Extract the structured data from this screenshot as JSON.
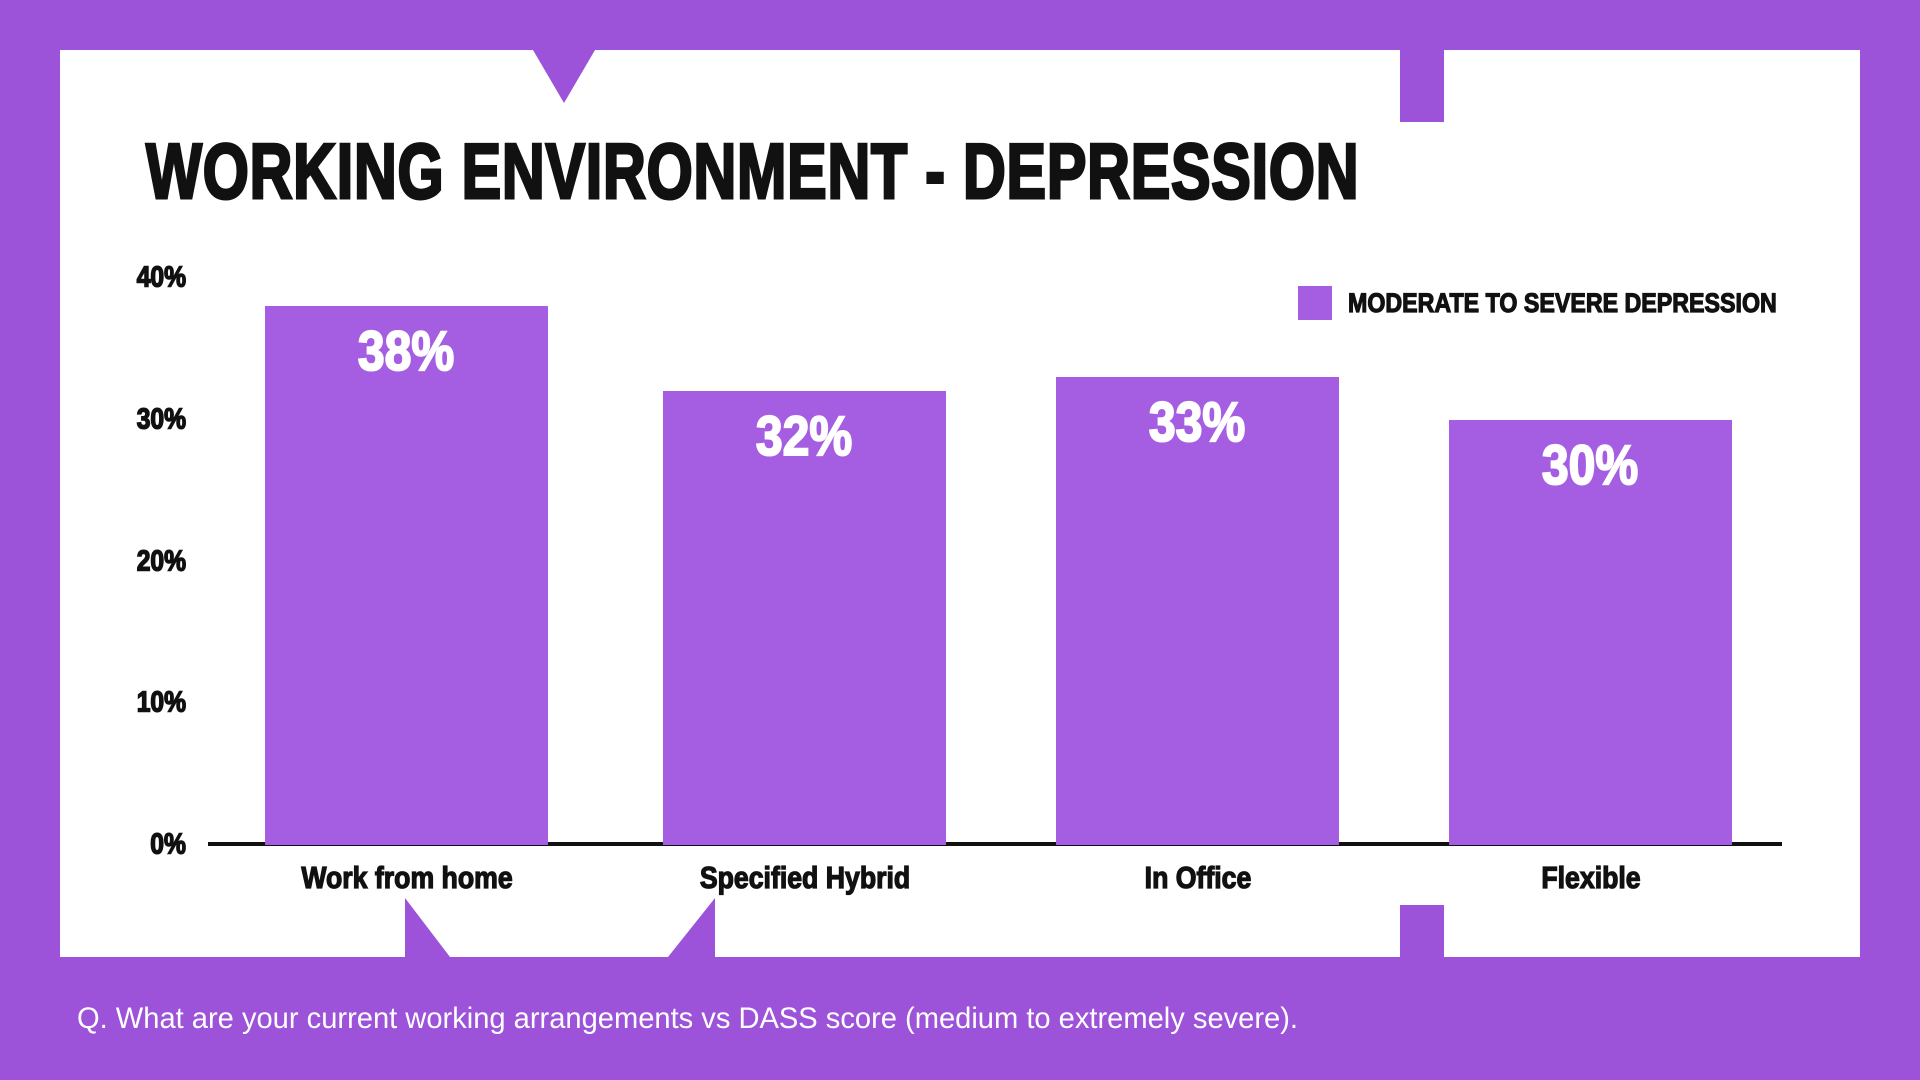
{
  "page": {
    "background_color": "#9C52D9",
    "card_color": "#FFFFFF",
    "text_color": "#111111"
  },
  "header": {
    "title": "WORKING ENVIRONMENT - DEPRESSION"
  },
  "legend": {
    "label": "MODERATE TO SEVERE DEPRESSION",
    "swatch_color": "#A55EE2"
  },
  "footer": {
    "question": "Q. What are your current working arrangements vs DASS score (medium to extremely severe)."
  },
  "chart_data": {
    "type": "bar",
    "title": "WORKING ENVIRONMENT - DEPRESSION",
    "categories": [
      "Work from home",
      "Specified Hybrid",
      "In Office",
      "Flexible"
    ],
    "values": [
      38,
      32,
      33,
      30
    ],
    "value_labels": [
      "38%",
      "32%",
      "33%",
      "30%"
    ],
    "legend": [
      "MODERATE TO SEVERE DEPRESSION"
    ],
    "legend_position": "top-right",
    "xlabel": "",
    "ylabel": "",
    "ylim": [
      0,
      40
    ],
    "yticks": [
      0,
      10,
      20,
      30,
      40
    ],
    "ytick_labels": [
      "0%",
      "10%",
      "20%",
      "30%",
      "40%"
    ],
    "grid": false,
    "bar_color": "#A55EE2",
    "value_label_color": "#FFFFFF"
  }
}
